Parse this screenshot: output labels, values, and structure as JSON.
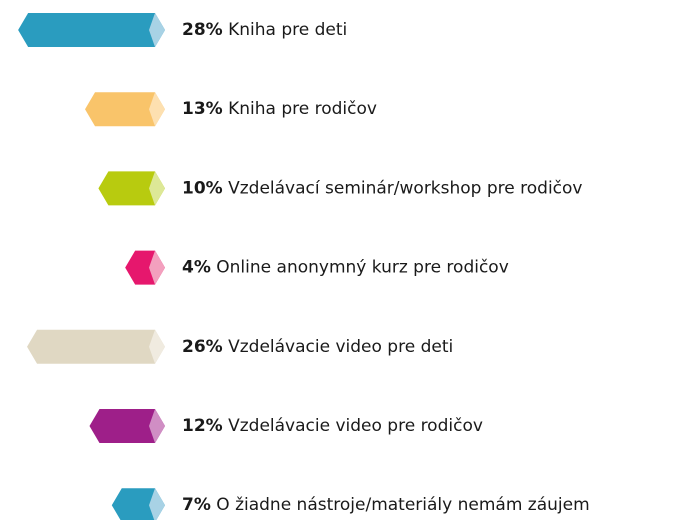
{
  "chart_data": {
    "type": "bar",
    "categories": [
      "Kniha pre deti",
      "Kniha pre rodičov",
      "Vzdelávací seminár/workshop pre rodičov",
      "Online anonymný kurz pre rodičov",
      "Vzdelávacie video pre deti",
      "Vzdelávacie video pre rodičov",
      "O žiadne nástroje/materiály nemám záujem"
    ],
    "values": [
      28,
      13,
      10,
      4,
      26,
      12,
      7
    ],
    "value_labels": [
      "28%",
      "13%",
      "10%",
      "4%",
      "26%",
      "12%",
      "7%"
    ],
    "colors": [
      "#2a9cbf",
      "#f9c46a",
      "#b8cb0f",
      "#e6176d",
      "#e0d8c3",
      "#9e1f89",
      "#2a9cbf"
    ],
    "tip_colors": [
      "#a8d2e5",
      "#fde0b0",
      "#dde897",
      "#f3a0be",
      "#f0ebe0",
      "#d08ec4",
      "#a8d2e5"
    ]
  }
}
